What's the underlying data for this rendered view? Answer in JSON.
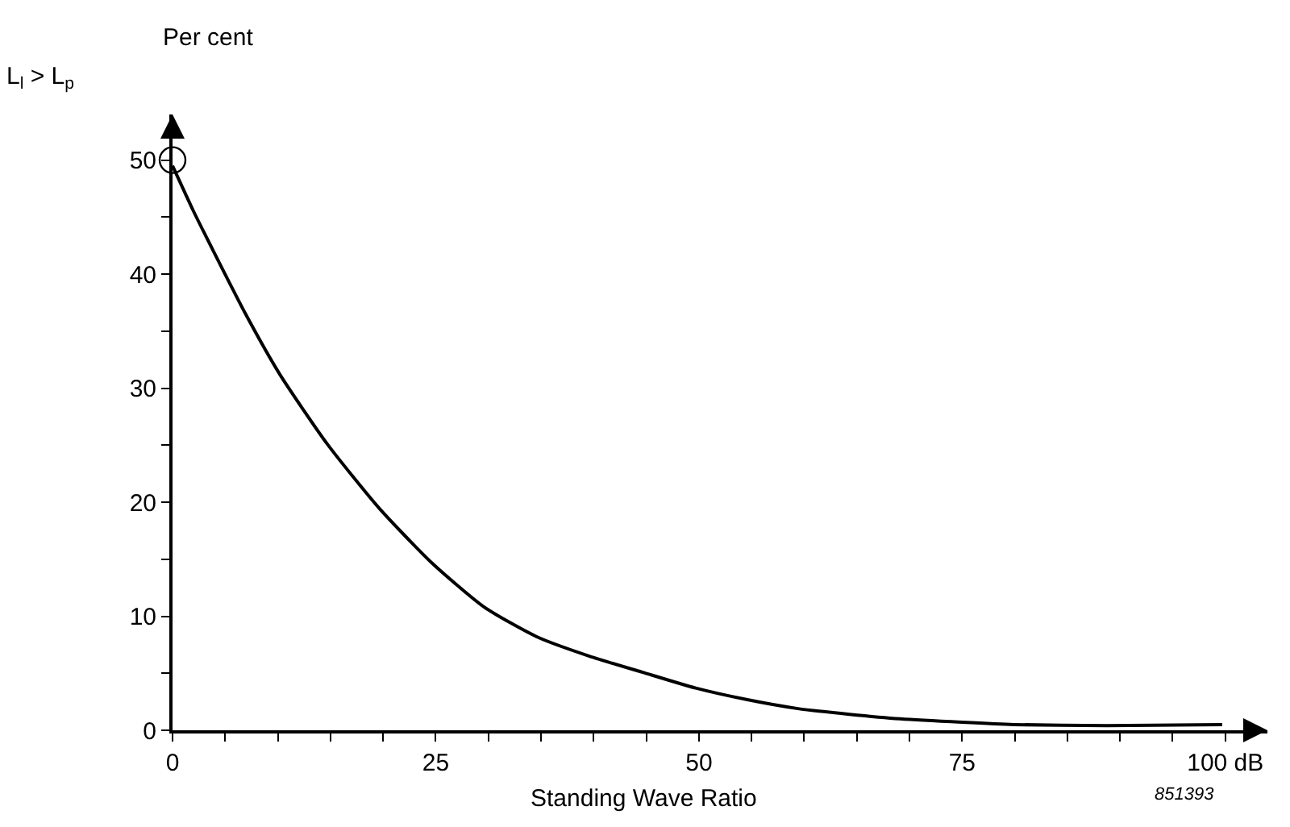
{
  "chart_data": {
    "type": "line",
    "ylabel": "Per cent",
    "xlabel": "Standing Wave Ratio",
    "x": [
      0,
      2,
      4,
      7,
      10.2,
      14.7,
      19.6,
      24.6,
      29.6,
      34.6,
      39.6,
      44.6,
      49.7,
      54.5,
      59.4,
      64.3,
      69.1,
      75,
      79.9,
      88.7,
      99.7
    ],
    "series": [
      {
        "color": "#000000",
        "values": [
          49.5,
          45.5,
          41.8,
          36.4,
          31.2,
          25.1,
          19.5,
          14.7,
          10.8,
          8.2,
          6.5,
          5.1,
          3.7,
          2.7,
          1.9,
          1.4,
          1.0,
          0.7,
          0.5,
          0.4,
          0.5
        ],
        "marker": "none"
      },
      {
        "type": "scatter",
        "color": "#000000",
        "x": [
          0
        ],
        "values": [
          50
        ],
        "marker": "circle"
      }
    ],
    "xlim": [
      0,
      104
    ],
    "ylim": [
      0,
      54
    ],
    "xticks": [
      0,
      {
        "value": 5,
        "label": null
      },
      {
        "value": 10,
        "label": null
      },
      {
        "value": 15,
        "label": null
      },
      {
        "value": 20,
        "label": null
      },
      25,
      {
        "value": 30,
        "label": null
      },
      {
        "value": 35,
        "label": null
      },
      {
        "value": 40,
        "label": null
      },
      {
        "value": 45,
        "label": null
      },
      50,
      {
        "value": 55,
        "label": null
      },
      {
        "value": 60,
        "label": null
      },
      {
        "value": 65,
        "label": null
      },
      {
        "value": 70,
        "label": null
      },
      75,
      {
        "value": 80,
        "label": null
      },
      {
        "value": 85,
        "label": null
      },
      {
        "value": 90,
        "label": null
      },
      {
        "value": 95,
        "label": null
      },
      {
        "value": 100,
        "label": "100 dB"
      }
    ],
    "yticks": [
      0,
      {
        "value": 5,
        "label": null
      },
      10,
      {
        "value": 15,
        "label": null
      },
      20,
      {
        "value": 25,
        "label": null
      },
      30,
      {
        "value": 35,
        "label": null
      },
      40,
      {
        "value": 45,
        "label": null
      },
      50
    ],
    "annotations": [
      "L$_{l}$ > L$_{p}$",
      "851393"
    ],
    "line_style": "solid"
  }
}
